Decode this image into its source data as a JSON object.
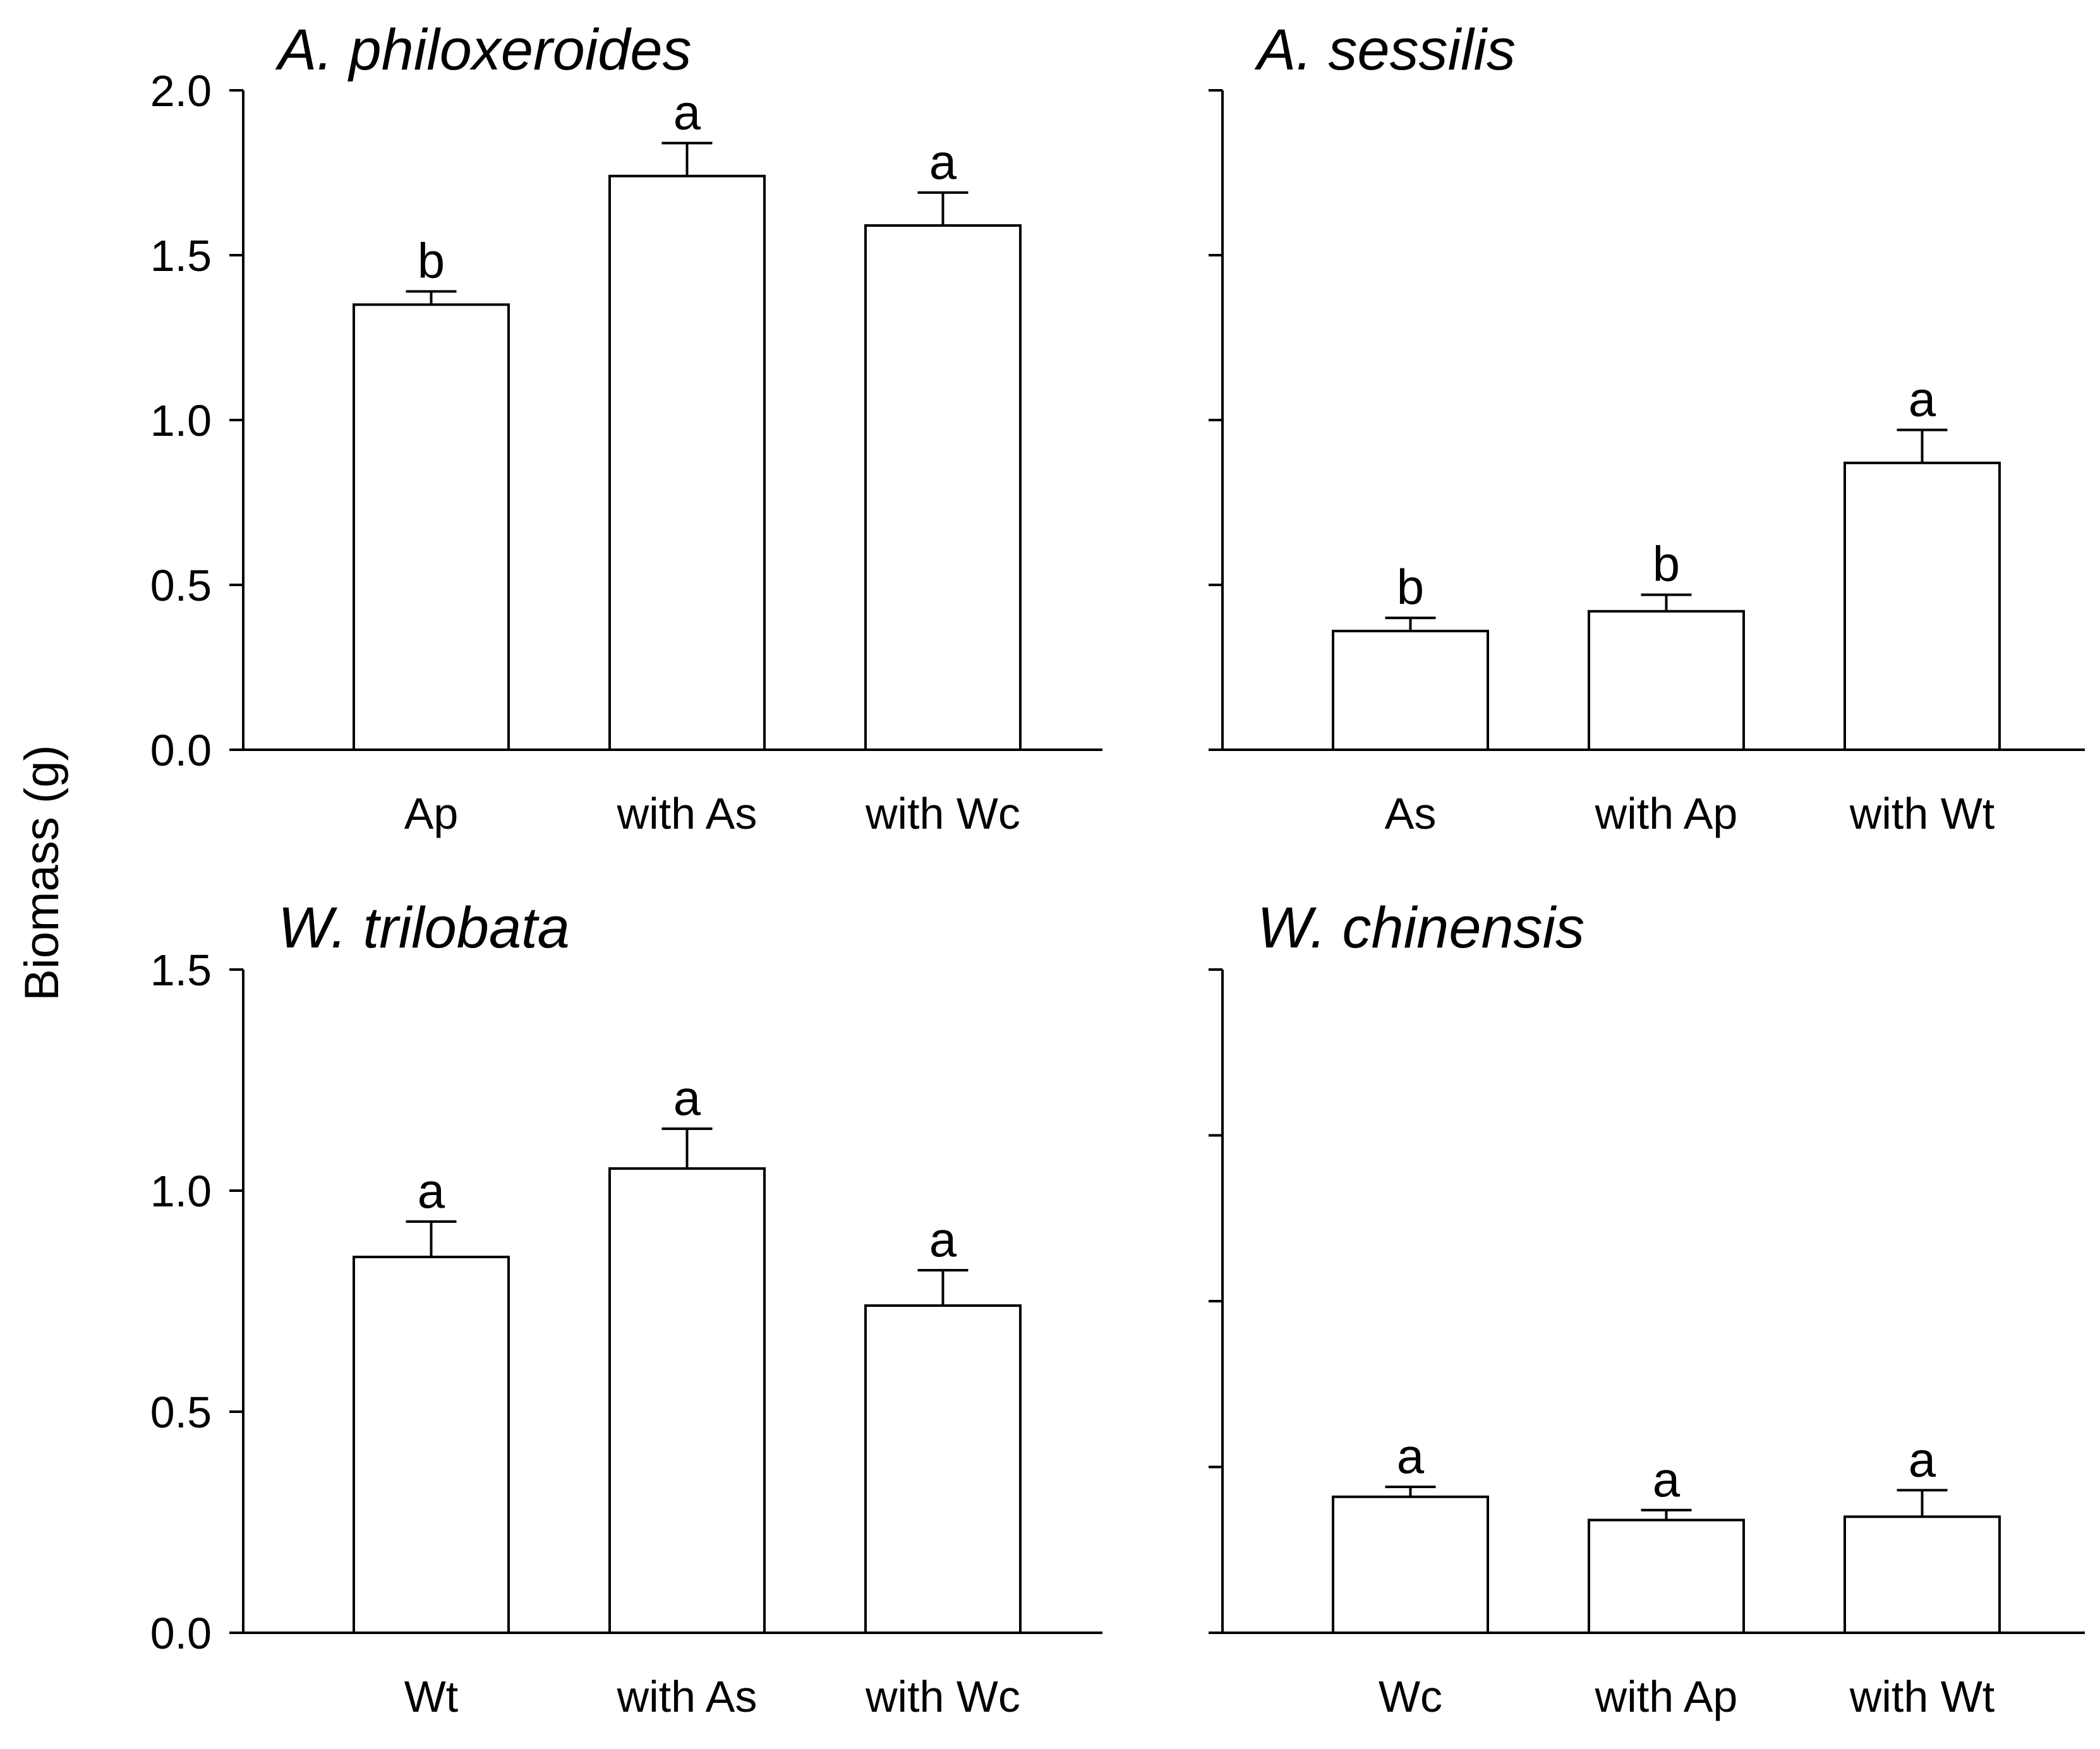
{
  "figure": {
    "ylabel": "Biomass (g)"
  },
  "chart_data": [
    {
      "type": "bar",
      "title": "A. philoxeroides",
      "categories": [
        "Ap",
        "with As",
        "with Wc"
      ],
      "values": [
        1.35,
        1.74,
        1.59
      ],
      "errors": [
        0.04,
        0.1,
        0.1
      ],
      "significance": [
        "b",
        "a",
        "a"
      ],
      "ylim": [
        0,
        2.0
      ],
      "yticks": [
        0.0,
        0.5,
        1.0,
        1.5,
        2.0
      ],
      "ytick_labels": [
        "0.0",
        "0.5",
        "1.0",
        "1.5",
        "2.0"
      ]
    },
    {
      "type": "bar",
      "title": "A. sessilis",
      "categories": [
        "As",
        "with Ap",
        "with Wt"
      ],
      "values": [
        0.36,
        0.42,
        0.87
      ],
      "errors": [
        0.04,
        0.05,
        0.1
      ],
      "significance": [
        "b",
        "b",
        "a"
      ],
      "ylim": [
        0,
        2.0
      ],
      "yticks": [
        0.0,
        0.5,
        1.0,
        1.5,
        2.0
      ],
      "ytick_labels": []
    },
    {
      "type": "bar",
      "title": "W. trilobata",
      "categories": [
        "Wt",
        "with As",
        "with Wc"
      ],
      "values": [
        0.85,
        1.05,
        0.74
      ],
      "errors": [
        0.08,
        0.09,
        0.08
      ],
      "significance": [
        "a",
        "a",
        "a"
      ],
      "ylim": [
        0,
        1.5
      ],
      "yticks": [
        0.0,
        0.5,
        1.0,
        1.5
      ],
      "ytick_labels": [
        "0.0",
        "0.5",
        "1.0",
        "1.5"
      ]
    },
    {
      "type": "bar",
      "title": "W. chinensis",
      "categories": [
        "Wc",
        "with Ap",
        "with Wt"
      ],
      "values": [
        0.41,
        0.34,
        0.35
      ],
      "errors": [
        0.03,
        0.03,
        0.08
      ],
      "significance": [
        "a",
        "a",
        "a"
      ],
      "ylim": [
        0,
        2.0
      ],
      "yticks": [
        0.0,
        0.5,
        1.0,
        1.5,
        2.0
      ],
      "ytick_labels": []
    }
  ]
}
